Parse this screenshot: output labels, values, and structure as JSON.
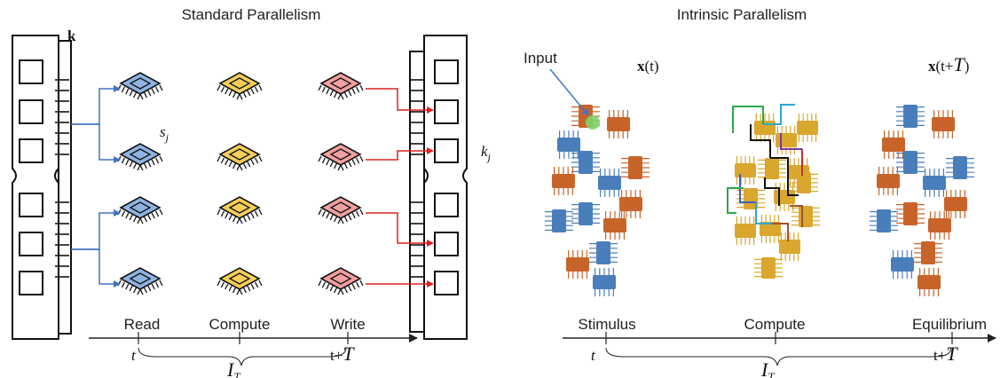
{
  "left": {
    "title": "Standard Parallelism",
    "memory_label": "k",
    "processor_label": "s",
    "processor_label_sub": "j",
    "output_label": "k",
    "output_label_sub": "j",
    "chip_colors": [
      "#8fb4e3",
      "#f5cf5a",
      "#f2a0a0"
    ],
    "timeline": {
      "phases": [
        "Read",
        "Compute",
        "Write"
      ],
      "start": "t",
      "end": "t+",
      "end_symbol": "T",
      "interval": "I",
      "interval_sub": "T"
    }
  },
  "right": {
    "title": "Intrinsic Parallelism",
    "input_label": "Input",
    "state_start": "x",
    "state_start_arg": "(t)",
    "state_end": "x",
    "state_end_arg": "(t+",
    "state_end_symbol": "T",
    "state_end_close": ")",
    "timeline": {
      "phases": [
        "Stimulus",
        "Compute",
        "Equilibrium"
      ],
      "start": "t",
      "end": "t+",
      "end_symbol": "T",
      "interval": "I",
      "interval_sub": "T"
    },
    "node_colors": [
      "#4a7ebb",
      "#c8642a",
      "#d9a62e"
    ]
  },
  "arrow_colors": {
    "read": "#4472c4",
    "write": "#e02020"
  }
}
